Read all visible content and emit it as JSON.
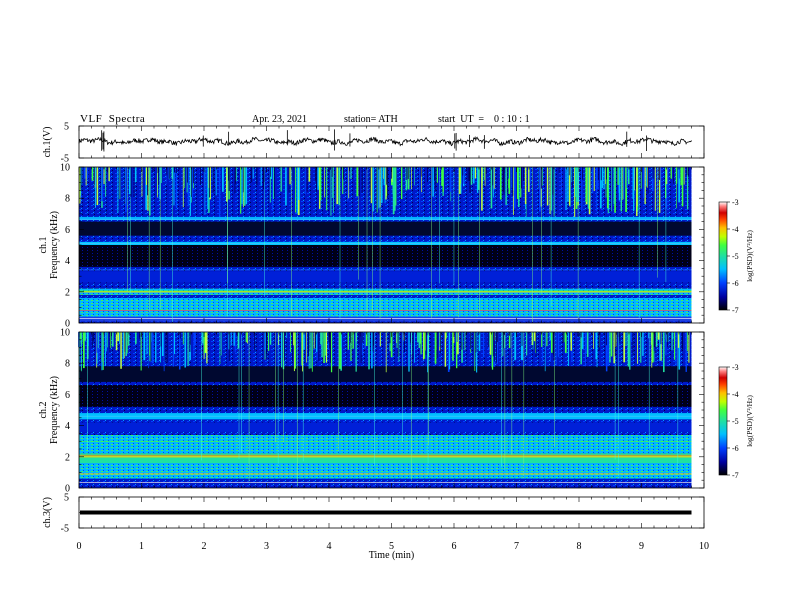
{
  "header": {
    "title": "VLF  Spectra",
    "date": "Apr. 23, 2021",
    "station": "station= ATH",
    "start_ut": "start  UT  =    0 : 10 : 1"
  },
  "x_axis": {
    "label": "Time  (min)",
    "ticks": [
      0,
      1,
      2,
      3,
      4,
      5,
      6,
      7,
      8,
      9,
      10
    ],
    "range": [
      0,
      10
    ],
    "data_end": 9.8
  },
  "panels": {
    "ch1_wave": {
      "ylabel": "ch.1(V)",
      "ticks": [
        "5",
        "-5"
      ],
      "yrange": [
        -5,
        5
      ]
    },
    "ch1_spec": {
      "ylabel": "ch.1\nFrequency (kHz)",
      "ticks": [
        0,
        2,
        4,
        6,
        8,
        10
      ],
      "yrange": [
        0,
        10
      ]
    },
    "ch2_spec": {
      "ylabel": "ch.2\nFrequency (kHz)",
      "ticks": [
        0,
        2,
        4,
        6,
        8,
        10
      ],
      "yrange": [
        0,
        10
      ]
    },
    "ch3_wave": {
      "ylabel": "ch.3(V)",
      "ticks": [
        "5",
        "-5"
      ],
      "yrange": [
        -5,
        5
      ]
    }
  },
  "colorbar": {
    "label": "log(PSD)(V²/Hz)",
    "ticks": [
      "-3",
      "-4",
      "-5",
      "-6",
      "-7"
    ],
    "range": [
      -7,
      -3
    ],
    "colors": [
      "#000000",
      "#0000a0",
      "#0040ff",
      "#00c0ff",
      "#20e0a0",
      "#40ff40",
      "#c0ff00",
      "#ffc000",
      "#ff4000",
      "#d00000",
      "#ff8080",
      "#ffffff"
    ]
  },
  "chart_data": [
    {
      "type": "line",
      "ylabel": "ch.1(V)",
      "ylim": [
        -5,
        5
      ],
      "xlim": [
        0,
        10
      ],
      "x": [
        0,
        2,
        4,
        6,
        8,
        9.8
      ],
      "y": [
        0.2,
        0.2,
        0.2,
        0.2,
        0.2,
        0.2
      ]
    },
    {
      "type": "heatmap",
      "ylabel": "ch.1 Frequency (kHz)",
      "ylim": [
        0,
        10
      ],
      "xlim": [
        0,
        10
      ],
      "colorbar_range": [
        -7,
        -3
      ]
    },
    {
      "type": "heatmap",
      "ylabel": "ch.2 Frequency (kHz)",
      "ylim": [
        0,
        10
      ],
      "xlim": [
        0,
        10
      ],
      "colorbar_range": [
        -7,
        -3
      ]
    },
    {
      "type": "line",
      "ylabel": "ch.3(V)",
      "ylim": [
        -5,
        5
      ],
      "xlim": [
        0,
        10
      ],
      "x": [
        0,
        9.8
      ],
      "y": [
        0,
        0
      ]
    }
  ]
}
